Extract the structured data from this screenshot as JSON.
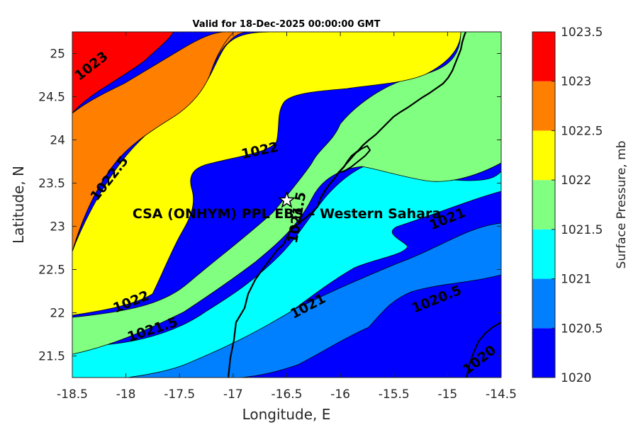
{
  "chart_data": {
    "type": "contourf",
    "title": "Valid for 18-Dec-2025 00:00:00 GMT",
    "xlabel": "Longitude, E",
    "ylabel": "Latitude, N",
    "xlim": [
      -18.5,
      -14.5
    ],
    "ylim": [
      21.25,
      25.25
    ],
    "xticks": [
      "-18.5",
      "-18",
      "-17.5",
      "-17",
      "-16.5",
      "-16",
      "-15.5",
      "-15",
      "-14.5"
    ],
    "yticks": [
      "21.5",
      "22",
      "22.5",
      "23",
      "23.5",
      "24",
      "24.5",
      "25"
    ],
    "colorbar": {
      "label": "Surface Pressure, mb",
      "levels": [
        1020,
        1020.5,
        1021,
        1021.5,
        1022,
        1022.5,
        1023,
        1023.5
      ],
      "tick_labels": [
        "1020",
        "1020.5",
        "1021",
        "1021.5",
        "1022",
        "1022.5",
        "1023",
        "1023.5"
      ],
      "colors": [
        "#0000ff",
        "#0080ff",
        "#00ffff",
        "#80ff80",
        "#ffff00",
        "#ff8000",
        "#ff0000",
        "#800000"
      ]
    },
    "contour_labels": [
      {
        "text": "1023",
        "lon": -18.32,
        "lat": 24.85
      },
      {
        "text": "1022.5",
        "lon": -18.15,
        "lat": 23.55
      },
      {
        "text": "1022",
        "lon": -16.75,
        "lat": 23.87
      },
      {
        "text": "1022",
        "lon": -17.95,
        "lat": 22.12
      },
      {
        "text": "1021.5",
        "lon": -17.75,
        "lat": 21.8
      },
      {
        "text": "1021.5",
        "lon": -16.4,
        "lat": 23.1
      },
      {
        "text": "1021",
        "lon": -16.3,
        "lat": 22.07
      },
      {
        "text": "1021",
        "lon": -15.0,
        "lat": 23.08
      },
      {
        "text": "1020.5",
        "lon": -15.1,
        "lat": 22.15
      },
      {
        "text": "1020",
        "lon": -14.7,
        "lat": 21.45
      }
    ],
    "site": {
      "name": "CSA (ONHYM) PPL EBS – Western Sahara",
      "lon": -16.5,
      "lat": 23.3,
      "marker": "star"
    }
  }
}
